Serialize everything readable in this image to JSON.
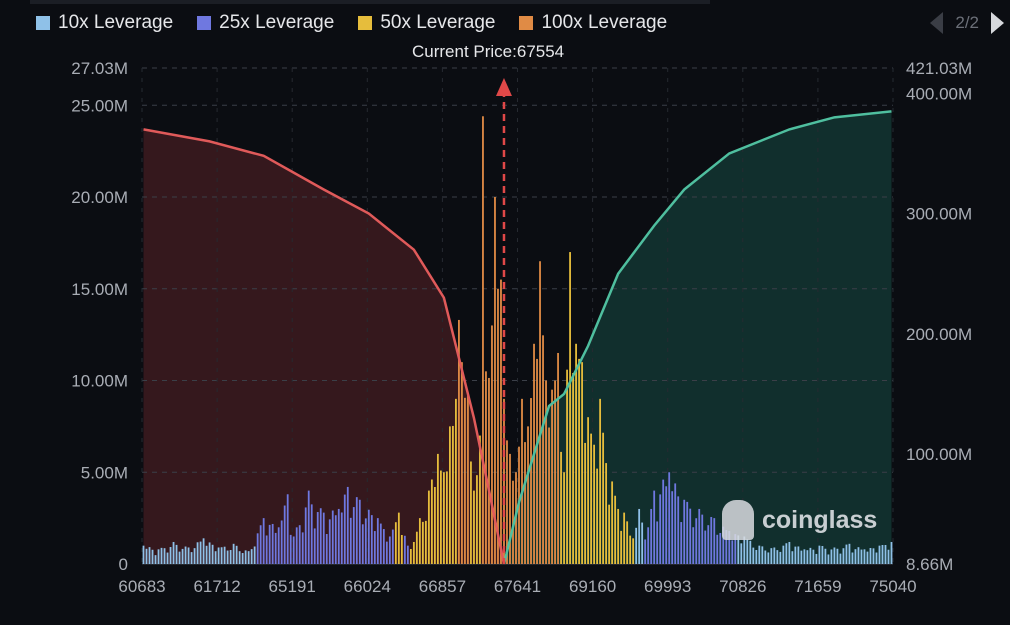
{
  "legend": [
    {
      "label": "10x Leverage",
      "color": "#8fc1e8"
    },
    {
      "label": "25x Leverage",
      "color": "#6f78e0"
    },
    {
      "label": "50x Leverage",
      "color": "#e6bd3c"
    },
    {
      "label": "100x Leverage",
      "color": "#e08b45"
    }
  ],
  "pager": {
    "text": "2/2"
  },
  "current_price_label": "Current Price:67554",
  "watermark": "coinglass",
  "chart_data": {
    "type": "bar",
    "x_tick_labels": [
      "60683",
      "61712",
      "65191",
      "66024",
      "66857",
      "67641",
      "69160",
      "69993",
      "70826",
      "71659",
      "75040"
    ],
    "y_left_ticks": [
      "0",
      "5.00M",
      "10.00M",
      "15.00M",
      "20.00M",
      "25.00M",
      "27.03M"
    ],
    "y_left_range": [
      0,
      27.03
    ],
    "y_right_ticks": [
      "8.66M",
      "100.00M",
      "200.00M",
      "300.00M",
      "400.00M",
      "421.03M"
    ],
    "y_right_range": [
      8.66,
      421.03
    ],
    "unit": "M",
    "current_price": 67554,
    "current_price_index": 120,
    "bar_count": 250,
    "colors": {
      "10x": "#8fc1e8",
      "25x": "#6f78e0",
      "50x": "#e6bd3c",
      "100x": "#e08b45",
      "short_line": "#e05a5a",
      "long_line": "#4fbf9f",
      "short_fill": "#3a1a1f",
      "long_fill": "#123331"
    },
    "bars_sparse": [
      [
        0,
        1.0,
        "10x"
      ],
      [
        5,
        0.8,
        "10x"
      ],
      [
        10,
        1.2,
        "10x"
      ],
      [
        15,
        0.9,
        "10x"
      ],
      [
        20,
        1.4,
        "10x"
      ],
      [
        25,
        0.9,
        "10x"
      ],
      [
        30,
        1.1,
        "10x"
      ],
      [
        35,
        0.7,
        "10x"
      ],
      [
        40,
        2.5,
        "25x"
      ],
      [
        45,
        2.0,
        "25x"
      ],
      [
        48,
        3.8,
        "25x"
      ],
      [
        50,
        1.5,
        "25x"
      ],
      [
        55,
        4.0,
        "25x"
      ],
      [
        60,
        2.8,
        "25x"
      ],
      [
        65,
        3.0,
        "25x"
      ],
      [
        68,
        4.2,
        "25x"
      ],
      [
        72,
        3.5,
        "25x"
      ],
      [
        78,
        2.5,
        "25x"
      ],
      [
        82,
        1.5,
        "25x"
      ],
      [
        85,
        2.8,
        "50x"
      ],
      [
        88,
        1.0,
        "25x"
      ],
      [
        90,
        1.2,
        "50x"
      ],
      [
        92,
        2.5,
        "50x"
      ],
      [
        95,
        4.0,
        "50x"
      ],
      [
        98,
        6.0,
        "50x"
      ],
      [
        100,
        5.0,
        "50x"
      ],
      [
        102,
        7.5,
        "50x"
      ],
      [
        104,
        9.0,
        "50x"
      ],
      [
        105,
        13.3,
        "100x"
      ],
      [
        106,
        11.0,
        "100x"
      ],
      [
        108,
        9.2,
        "100x"
      ],
      [
        110,
        4.0,
        "50x"
      ],
      [
        112,
        7.0,
        "50x"
      ],
      [
        113,
        24.4,
        "100x"
      ],
      [
        114,
        10.5,
        "100x"
      ],
      [
        116,
        13.0,
        "100x"
      ],
      [
        117,
        20.0,
        "100x"
      ],
      [
        118,
        15.0,
        "100x"
      ],
      [
        119,
        15.5,
        "100x"
      ],
      [
        120,
        9.0,
        "100x"
      ],
      [
        122,
        6.0,
        "100x"
      ],
      [
        124,
        5.0,
        "100x"
      ],
      [
        126,
        9.0,
        "100x"
      ],
      [
        128,
        7.5,
        "100x"
      ],
      [
        130,
        12.0,
        "100x"
      ],
      [
        132,
        16.5,
        "100x"
      ],
      [
        134,
        10.0,
        "100x"
      ],
      [
        136,
        9.5,
        "100x"
      ],
      [
        138,
        11.5,
        "100x"
      ],
      [
        140,
        5.0,
        "50x"
      ],
      [
        142,
        17.0,
        "50x"
      ],
      [
        144,
        12.0,
        "50x"
      ],
      [
        146,
        11.0,
        "50x"
      ],
      [
        148,
        8.0,
        "50x"
      ],
      [
        150,
        6.5,
        "50x"
      ],
      [
        152,
        9.0,
        "50x"
      ],
      [
        154,
        5.5,
        "50x"
      ],
      [
        156,
        4.5,
        "50x"
      ],
      [
        158,
        3.0,
        "50x"
      ],
      [
        160,
        2.8,
        "50x"
      ],
      [
        163,
        1.4,
        "50x"
      ],
      [
        165,
        3.0,
        "10x"
      ],
      [
        168,
        2.0,
        "25x"
      ],
      [
        170,
        4.0,
        "25x"
      ],
      [
        175,
        5.0,
        "25x"
      ],
      [
        180,
        3.5,
        "25x"
      ],
      [
        185,
        3.0,
        "25x"
      ],
      [
        190,
        2.5,
        "25x"
      ],
      [
        195,
        1.8,
        "25x"
      ],
      [
        200,
        1.5,
        "10x"
      ],
      [
        205,
        1.0,
        "10x"
      ],
      [
        210,
        0.9,
        "10x"
      ],
      [
        215,
        1.2,
        "10x"
      ],
      [
        220,
        0.8,
        "10x"
      ],
      [
        225,
        1.0,
        "10x"
      ],
      [
        230,
        0.9,
        "10x"
      ],
      [
        235,
        1.1,
        "10x"
      ],
      [
        240,
        0.8,
        "10x"
      ],
      [
        245,
        1.0,
        "10x"
      ],
      [
        249,
        1.2,
        "10x"
      ]
    ],
    "cumulative_short": {
      "x": [
        0,
        22,
        40,
        60,
        75,
        90,
        100,
        106,
        110,
        115,
        120
      ],
      "y": [
        370,
        360,
        348,
        320,
        300,
        270,
        230,
        170,
        130,
        70,
        8.66
      ]
    },
    "cumulative_long": {
      "x": [
        120,
        125,
        135,
        140,
        148,
        158,
        170,
        180,
        195,
        215,
        230,
        249
      ],
      "y": [
        8.66,
        60,
        140,
        150,
        190,
        250,
        290,
        320,
        350,
        370,
        380,
        385
      ]
    }
  }
}
